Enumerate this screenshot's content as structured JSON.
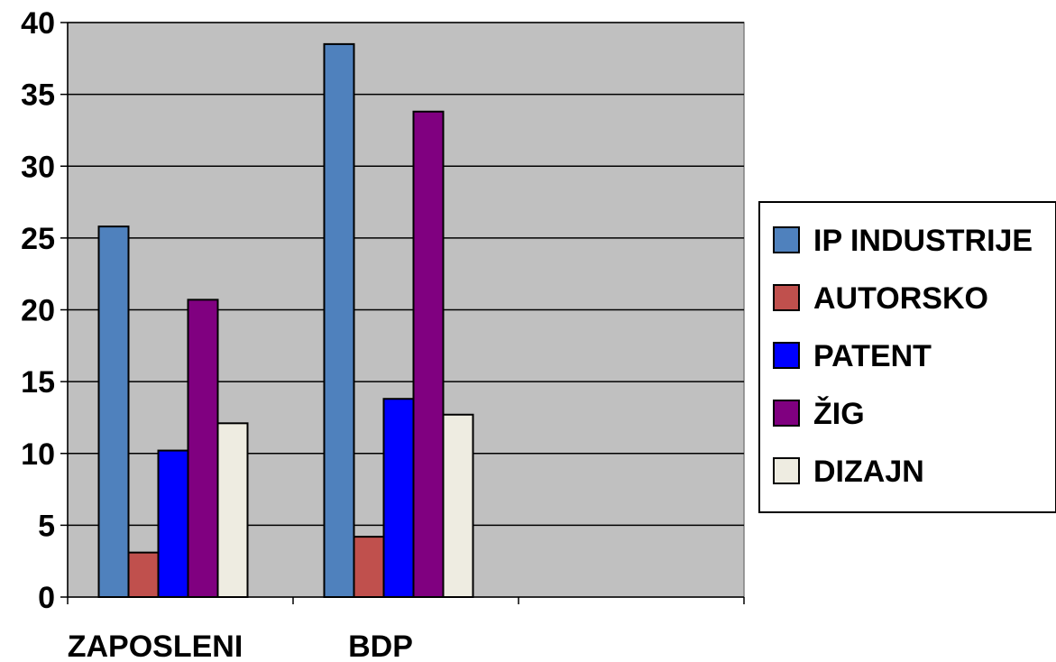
{
  "chart_data": {
    "type": "bar",
    "categories": [
      "ZAPOSLENI",
      "BDP",
      ""
    ],
    "series": [
      {
        "name": "IP INDUSTRIJE",
        "color": "#4F81BD",
        "values": [
          25.8,
          38.5,
          null
        ]
      },
      {
        "name": "AUTORSKO",
        "color": "#C0504D",
        "values": [
          3.1,
          4.2,
          null
        ]
      },
      {
        "name": "PATENT",
        "color": "#0000FF",
        "values": [
          10.2,
          13.8,
          null
        ]
      },
      {
        "name": "ŽIG",
        "color": "#800080",
        "values": [
          20.7,
          33.8,
          null
        ]
      },
      {
        "name": "DIZAJN",
        "color": "#EEECE1",
        "values": [
          12.1,
          12.7,
          null
        ]
      }
    ],
    "title": "",
    "xlabel": "",
    "ylabel": "",
    "ylim": [
      0,
      40
    ],
    "yticks": [
      "0",
      "5",
      "10",
      "15",
      "20",
      "25",
      "30",
      "35",
      "40"
    ],
    "grid": true,
    "legend_position": "right",
    "plot_background": "#C0C0C0"
  }
}
